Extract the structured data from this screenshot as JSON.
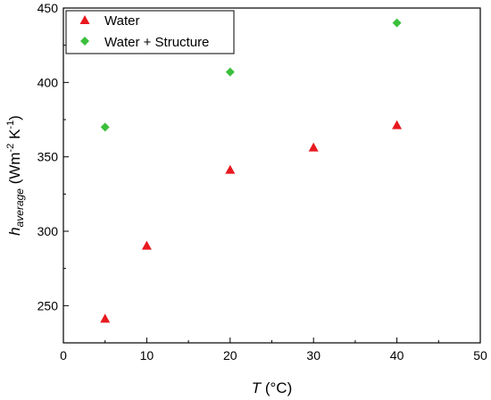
{
  "chart_data": {
    "type": "scatter",
    "title": "",
    "xlabel": {
      "var": "T",
      "unit": " (°C)"
    },
    "ylabel": {
      "var": "h",
      "sub": "average",
      "unit_pre": " (Wm",
      "unit_sup1": "-2",
      "unit_mid": " K",
      "unit_sup2": "-1",
      "unit_post": ")"
    },
    "xlim": [
      0,
      50
    ],
    "ylim": [
      225,
      450
    ],
    "xticks": [
      0,
      10,
      20,
      30,
      40,
      50
    ],
    "yticks": [
      250,
      300,
      350,
      400,
      450
    ],
    "grid": false,
    "legend_position": "top-left",
    "series": [
      {
        "name": "Water",
        "marker": "triangle",
        "color": "#e8191f",
        "x": [
          5,
          10,
          20,
          30,
          40
        ],
        "y": [
          241,
          290,
          341,
          356,
          371
        ]
      },
      {
        "name": "Water + Structure",
        "marker": "diamond",
        "color": "#3cbf3c",
        "x": [
          5,
          20,
          40
        ],
        "y": [
          370,
          407,
          440
        ]
      }
    ]
  }
}
